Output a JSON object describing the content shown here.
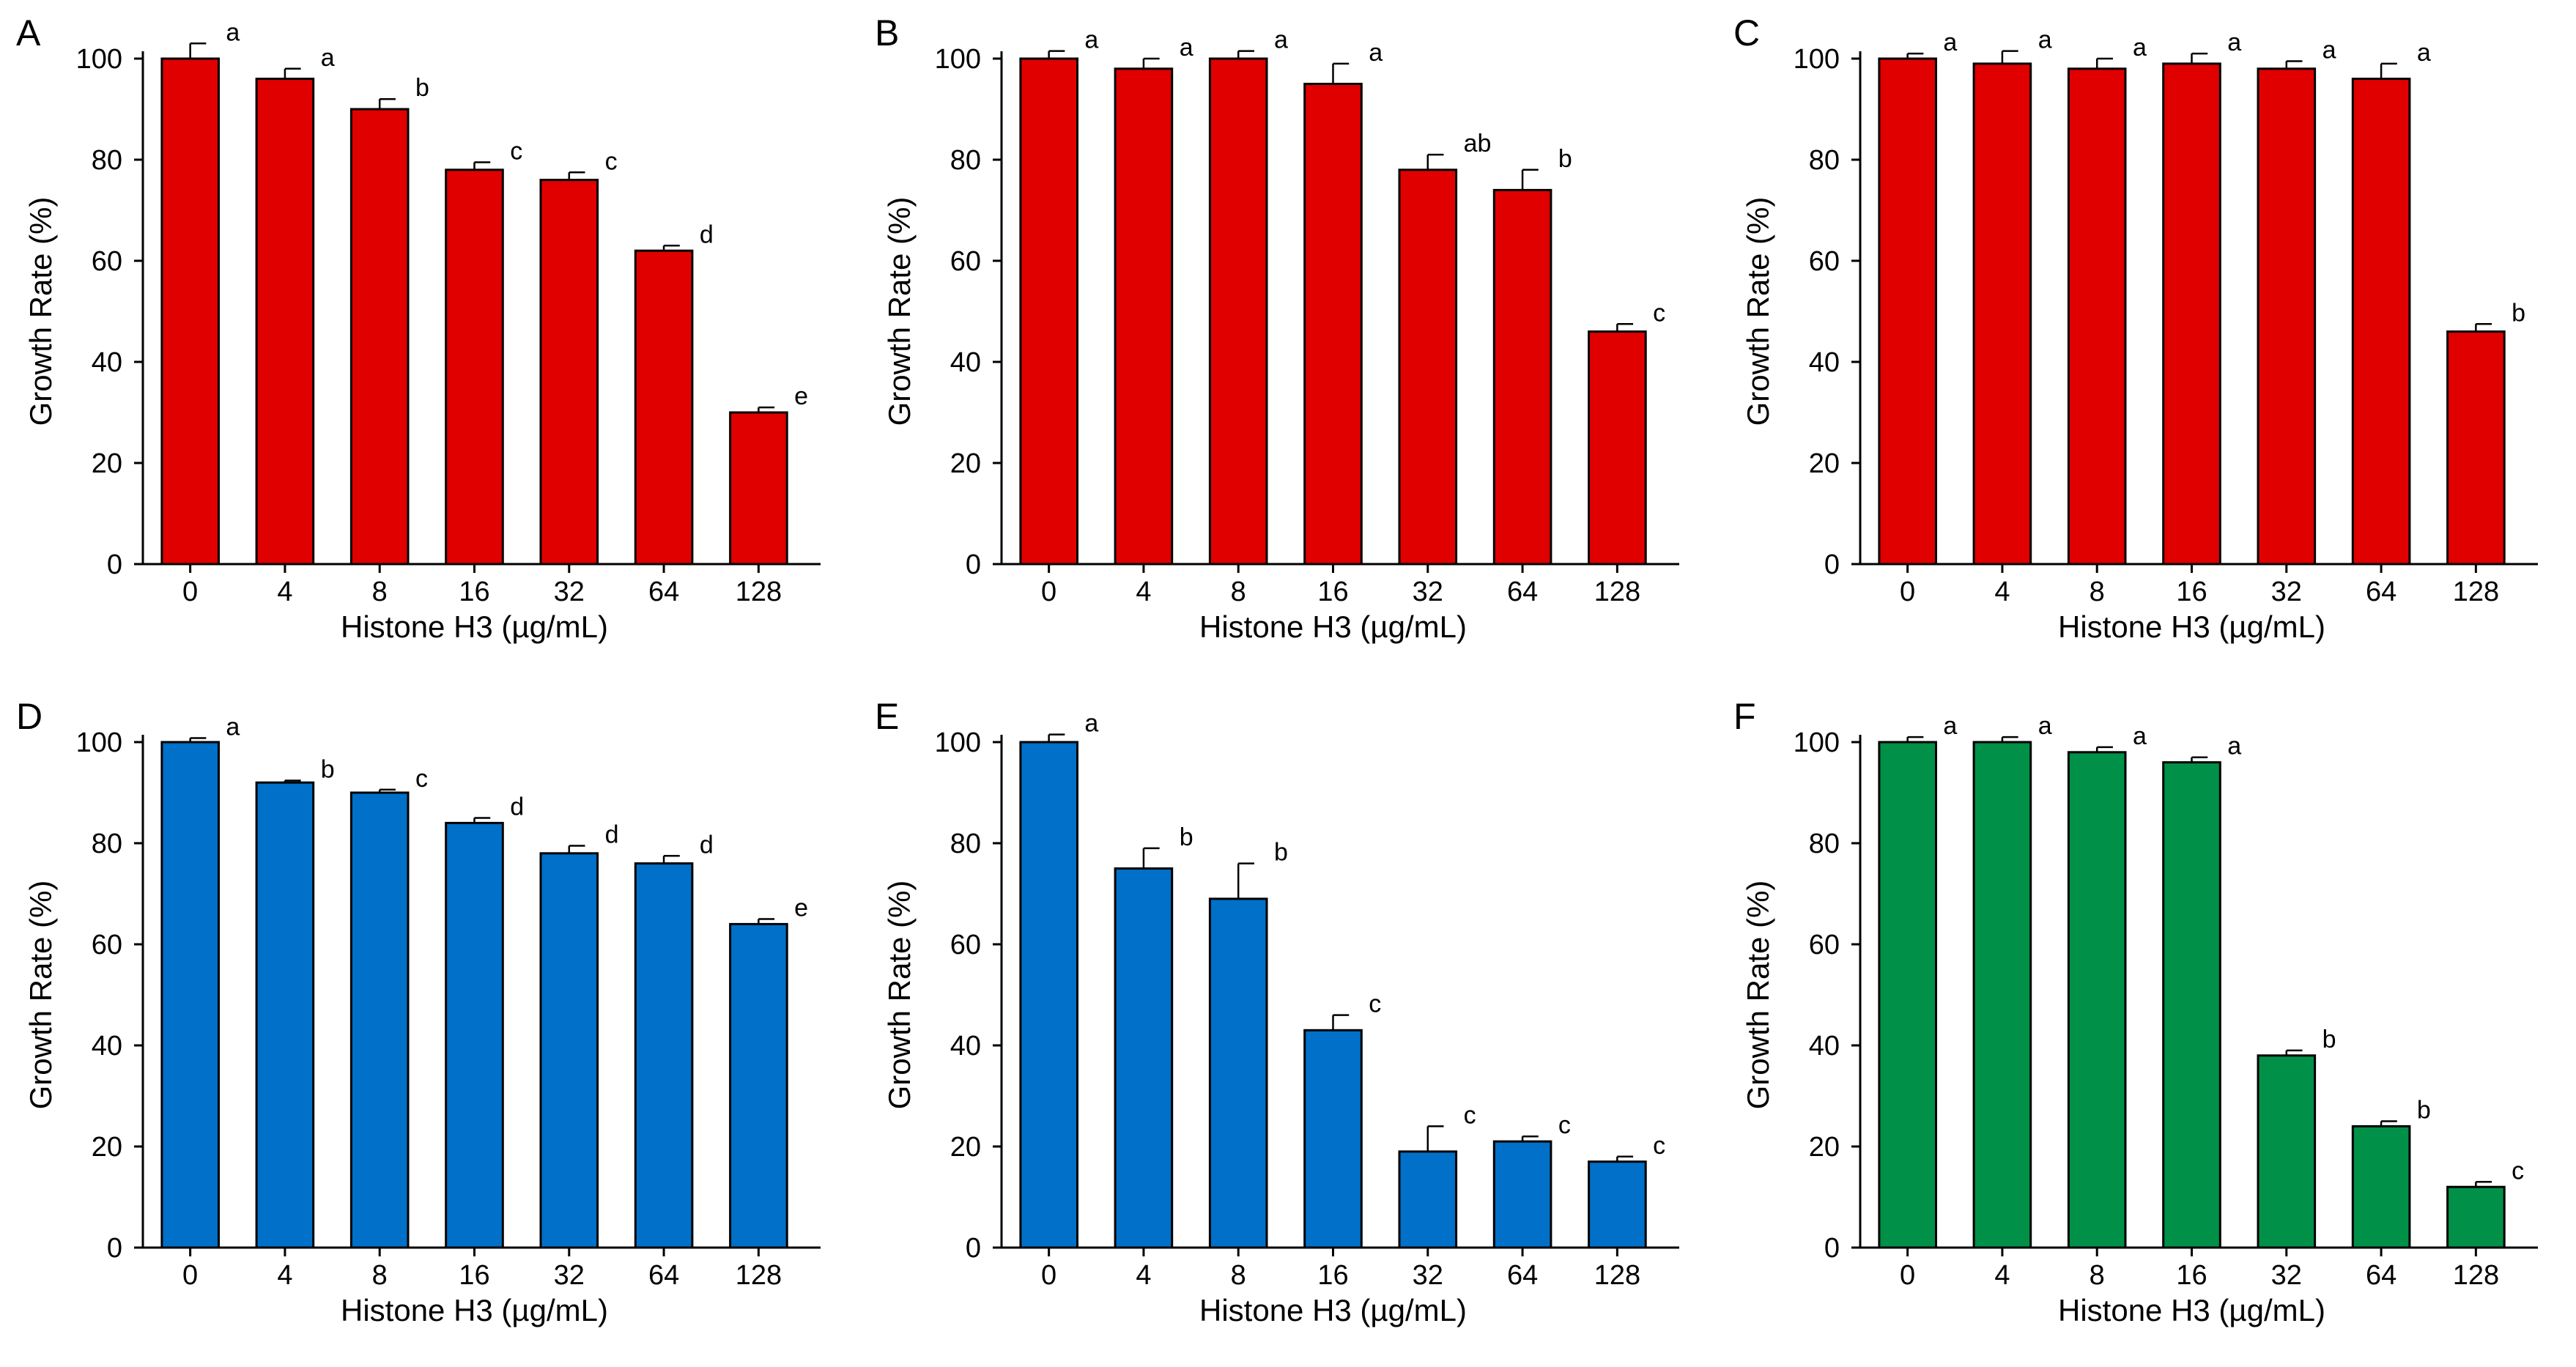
{
  "chart_data": [
    {
      "panel": "A",
      "type": "bar",
      "xlabel": "Histone H3 (µg/mL)",
      "ylabel": "Growth Rate (%)",
      "ylim": [
        0,
        100
      ],
      "yticks": [
        "0",
        "20",
        "40",
        "60",
        "80",
        "100"
      ],
      "categories": [
        "0",
        "4",
        "8",
        "16",
        "32",
        "64",
        "128"
      ],
      "values": [
        100,
        96,
        90,
        78,
        76,
        62,
        30
      ],
      "errors": [
        3,
        2,
        2,
        1.5,
        1.5,
        1,
        1
      ],
      "significance": [
        "a",
        "a",
        "b",
        "c",
        "c",
        "d",
        "e"
      ],
      "color": "#e00000"
    },
    {
      "panel": "B",
      "type": "bar",
      "xlabel": "Histone H3 (µg/mL)",
      "ylabel": "Growth Rate (%)",
      "ylim": [
        0,
        100
      ],
      "yticks": [
        "0",
        "20",
        "40",
        "60",
        "80",
        "100"
      ],
      "categories": [
        "0",
        "4",
        "8",
        "16",
        "32",
        "64",
        "128"
      ],
      "values": [
        100,
        98,
        100,
        95,
        78,
        74,
        46
      ],
      "errors": [
        1.5,
        2,
        1.5,
        4,
        3,
        4,
        1.5
      ],
      "significance": [
        "a",
        "a",
        "a",
        "a",
        "ab",
        "b",
        "c"
      ],
      "color": "#e00000"
    },
    {
      "panel": "C",
      "type": "bar",
      "xlabel": "Histone H3 (µg/mL)",
      "ylabel": "Growth Rate (%)",
      "ylim": [
        0,
        100
      ],
      "yticks": [
        "0",
        "20",
        "40",
        "60",
        "80",
        "100"
      ],
      "categories": [
        "0",
        "4",
        "8",
        "16",
        "32",
        "64",
        "128"
      ],
      "values": [
        100,
        99,
        98,
        99,
        98,
        96,
        46
      ],
      "errors": [
        1,
        2.5,
        2,
        2,
        1.5,
        3,
        1.5
      ],
      "significance": [
        "a",
        "a",
        "a",
        "a",
        "a",
        "a",
        "b"
      ],
      "color": "#e00000"
    },
    {
      "panel": "D",
      "type": "bar",
      "xlabel": "Histone H3 (µg/mL)",
      "ylabel": "Growth Rate (%)",
      "ylim": [
        0,
        100
      ],
      "yticks": [
        "0",
        "20",
        "40",
        "60",
        "80",
        "100"
      ],
      "categories": [
        "0",
        "4",
        "8",
        "16",
        "32",
        "64",
        "128"
      ],
      "values": [
        100,
        92,
        90,
        84,
        78,
        76,
        64
      ],
      "errors": [
        0.8,
        0.4,
        0.6,
        1,
        1.5,
        1.5,
        1
      ],
      "significance": [
        "a",
        "b",
        "c",
        "d",
        "d",
        "d",
        "e"
      ],
      "color": "#0070c8"
    },
    {
      "panel": "E",
      "type": "bar",
      "xlabel": "Histone H3 (µg/mL)",
      "ylabel": "Growth Rate (%)",
      "ylim": [
        0,
        100
      ],
      "yticks": [
        "0",
        "20",
        "40",
        "60",
        "80",
        "100"
      ],
      "categories": [
        "0",
        "4",
        "8",
        "16",
        "32",
        "64",
        "128"
      ],
      "values": [
        100,
        75,
        69,
        43,
        19,
        21,
        17
      ],
      "errors": [
        1.5,
        4,
        7,
        3,
        5,
        1,
        1
      ],
      "significance": [
        "a",
        "b",
        "b",
        "c",
        "c",
        "c",
        "c"
      ],
      "color": "#0070c8"
    },
    {
      "panel": "F",
      "type": "bar",
      "xlabel": "Histone H3 (µg/mL)",
      "ylabel": "Growth Rate (%)",
      "ylim": [
        0,
        100
      ],
      "yticks": [
        "0",
        "20",
        "40",
        "60",
        "80",
        "100"
      ],
      "categories": [
        "0",
        "4",
        "8",
        "16",
        "32",
        "64",
        "128"
      ],
      "values": [
        100,
        100,
        98,
        96,
        38,
        24,
        12
      ],
      "errors": [
        1,
        1,
        1,
        1,
        1,
        1,
        1
      ],
      "significance": [
        "a",
        "a",
        "a",
        "a",
        "b",
        "b",
        "c"
      ],
      "color": "#009048"
    }
  ]
}
